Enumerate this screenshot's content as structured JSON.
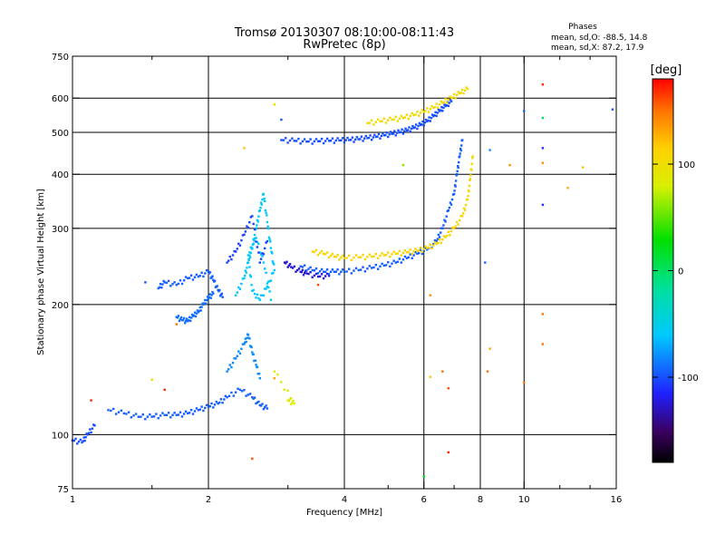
{
  "chart_data": {
    "type": "scatter",
    "title": "Tromsø 20130307 08:10:00-08:11:43",
    "subtitle": "RwPretec (8p)",
    "xlabel": "Frequency [MHz]",
    "ylabel": "Stationary phase Virtual Height [km]",
    "x_scale": "log",
    "y_scale": "log",
    "xlim": [
      1,
      16
    ],
    "ylim": [
      75,
      750
    ],
    "grid": true,
    "x_ticks": [
      1,
      2,
      4,
      6,
      8,
      10,
      16
    ],
    "x_tick_labels": [
      "1",
      "2",
      "4",
      "6",
      "8",
      "10",
      "16"
    ],
    "x_gridlines": [
      2,
      4,
      6,
      8,
      10
    ],
    "y_ticks": [
      75,
      100,
      200,
      300,
      400,
      500,
      600,
      750
    ],
    "y_tick_labels": [
      "75",
      "100",
      "200",
      "300",
      "400",
      "500",
      "600",
      "750"
    ],
    "y_gridlines": [
      100,
      200,
      300,
      400,
      500,
      600
    ],
    "phases_box": {
      "title": "Phases",
      "line1": "mean, sd,O: -88.5, 14.8",
      "line2": "mean, sd,X:  87.2, 17.9"
    },
    "colorbar": {
      "label": "[deg]",
      "range": [
        -180,
        180
      ],
      "ticks": [
        100,
        0,
        -100
      ],
      "tick_labels": [
        "100",
        "0",
        "-100"
      ]
    },
    "traces": [
      {
        "name": "",
        "phase": -100,
        "points": [
          [
            1.0,
            97
          ],
          [
            1.05,
            96
          ],
          [
            1.08,
            100
          ],
          [
            1.12,
            105
          ]
        ]
      },
      {
        "name": "",
        "phase": -95,
        "points": [
          [
            1.2,
            114
          ],
          [
            1.3,
            112
          ],
          [
            1.4,
            110
          ],
          [
            1.5,
            110
          ],
          [
            1.6,
            111
          ],
          [
            1.7,
            111
          ],
          [
            1.8,
            112
          ],
          [
            1.9,
            114
          ],
          [
            2.0,
            116
          ],
          [
            2.1,
            118
          ],
          [
            2.2,
            122
          ],
          [
            2.35,
            127
          ],
          [
            2.5,
            122
          ],
          [
            2.6,
            117
          ],
          [
            2.7,
            115
          ]
        ]
      },
      {
        "name": "",
        "phase": -80,
        "points": [
          [
            2.2,
            140
          ],
          [
            2.3,
            150
          ],
          [
            2.4,
            162
          ],
          [
            2.45,
            170
          ],
          [
            2.5,
            155
          ],
          [
            2.55,
            145
          ],
          [
            2.6,
            135
          ]
        ]
      },
      {
        "name": "",
        "phase": -95,
        "points": [
          [
            1.55,
            218
          ],
          [
            1.6,
            225
          ],
          [
            1.7,
            222
          ],
          [
            1.8,
            230
          ],
          [
            1.9,
            232
          ],
          [
            2.0,
            238
          ],
          [
            2.05,
            228
          ],
          [
            2.1,
            216
          ],
          [
            2.15,
            208
          ]
        ]
      },
      {
        "name": "",
        "phase": -90,
        "points": [
          [
            1.7,
            187
          ],
          [
            1.75,
            184
          ],
          [
            1.8,
            183
          ],
          [
            1.85,
            188
          ],
          [
            1.9,
            192
          ],
          [
            1.95,
            200
          ],
          [
            2.0,
            207
          ],
          [
            2.05,
            212
          ]
        ]
      },
      {
        "name": "",
        "phase": -60,
        "points": [
          [
            2.3,
            210
          ],
          [
            2.4,
            230
          ],
          [
            2.45,
            250
          ],
          [
            2.5,
            270
          ],
          [
            2.55,
            300
          ],
          [
            2.6,
            330
          ],
          [
            2.65,
            360
          ],
          [
            2.7,
            310
          ],
          [
            2.75,
            270
          ],
          [
            2.8,
            240
          ],
          [
            2.7,
            220
          ],
          [
            2.6,
            205
          ],
          [
            2.5,
            215
          ],
          [
            2.45,
            260
          ],
          [
            2.55,
            285
          ],
          [
            2.65,
            250
          ],
          [
            2.75,
            205
          ]
        ]
      },
      {
        "name": "",
        "phase": -105,
        "points": [
          [
            2.2,
            250
          ],
          [
            2.3,
            265
          ],
          [
            2.4,
            290
          ],
          [
            2.5,
            320
          ],
          [
            2.6,
            250
          ],
          [
            2.7,
            280
          ]
        ]
      },
      {
        "name": "",
        "phase": -125,
        "points": [
          [
            2.95,
            250
          ],
          [
            3.05,
            244
          ],
          [
            3.2,
            238
          ],
          [
            3.3,
            236
          ],
          [
            3.5,
            232
          ],
          [
            3.7,
            233
          ]
        ]
      },
      {
        "name": "",
        "phase": -95,
        "points": [
          [
            3.2,
            245
          ],
          [
            3.4,
            240
          ],
          [
            3.6,
            238
          ],
          [
            3.8,
            238
          ],
          [
            4.0,
            238
          ],
          [
            4.3,
            240
          ],
          [
            4.6,
            243
          ],
          [
            4.9,
            246
          ],
          [
            5.2,
            250
          ],
          [
            5.5,
            256
          ],
          [
            5.8,
            262
          ],
          [
            6.1,
            268
          ],
          [
            6.4,
            280
          ],
          [
            6.6,
            300
          ],
          [
            6.8,
            330
          ],
          [
            7.0,
            360
          ],
          [
            7.1,
            400
          ],
          [
            7.2,
            440
          ],
          [
            7.3,
            480
          ]
        ]
      },
      {
        "name": "",
        "phase": 110,
        "points": [
          [
            3.4,
            265
          ],
          [
            3.6,
            262
          ],
          [
            3.8,
            258
          ],
          [
            4.0,
            256
          ],
          [
            4.3,
            257
          ],
          [
            4.6,
            258
          ],
          [
            4.9,
            260
          ],
          [
            5.2,
            262
          ],
          [
            5.5,
            264
          ],
          [
            5.8,
            266
          ],
          [
            6.1,
            270
          ],
          [
            6.4,
            276
          ],
          [
            6.7,
            286
          ],
          [
            7.0,
            300
          ],
          [
            7.3,
            320
          ],
          [
            7.5,
            350
          ],
          [
            7.6,
            390
          ],
          [
            7.7,
            440
          ]
        ]
      },
      {
        "name": "",
        "phase": -100,
        "points": [
          [
            2.9,
            480
          ],
          [
            3.1,
            478
          ],
          [
            3.3,
            476
          ],
          [
            3.5,
            477
          ],
          [
            3.7,
            478
          ],
          [
            3.9,
            479
          ],
          [
            4.1,
            480
          ],
          [
            4.3,
            482
          ],
          [
            4.5,
            485
          ],
          [
            4.7,
            488
          ],
          [
            4.9,
            492
          ],
          [
            5.1,
            496
          ],
          [
            5.3,
            500
          ],
          [
            5.5,
            505
          ],
          [
            5.7,
            512
          ],
          [
            5.9,
            520
          ],
          [
            6.1,
            530
          ],
          [
            6.3,
            545
          ],
          [
            6.5,
            560
          ],
          [
            6.7,
            575
          ],
          [
            6.9,
            590
          ]
        ]
      },
      {
        "name": "",
        "phase": 105,
        "points": [
          [
            4.5,
            525
          ],
          [
            4.8,
            530
          ],
          [
            5.1,
            535
          ],
          [
            5.4,
            540
          ],
          [
            5.7,
            548
          ],
          [
            6.0,
            558
          ],
          [
            6.3,
            570
          ],
          [
            6.6,
            585
          ],
          [
            6.9,
            600
          ],
          [
            7.2,
            615
          ],
          [
            7.5,
            630
          ]
        ]
      },
      {
        "name": "",
        "phase": 85,
        "points": [
          [
            3.0,
            120
          ],
          [
            3.1,
            118
          ],
          [
            2.8,
            140
          ]
        ]
      }
    ],
    "scatter_points": [
      {
        "x": 11.0,
        "y": 645,
        "phase": 170
      },
      {
        "x": 11.0,
        "y": 540,
        "phase": 5
      },
      {
        "x": 11.0,
        "y": 460,
        "phase": -110
      },
      {
        "x": 11.0,
        "y": 425,
        "phase": 140
      },
      {
        "x": 11.0,
        "y": 340,
        "phase": -110
      },
      {
        "x": 11.0,
        "y": 190,
        "phase": 150
      },
      {
        "x": 11.0,
        "y": 162,
        "phase": 150
      },
      {
        "x": 12.5,
        "y": 372,
        "phase": 130
      },
      {
        "x": 15.7,
        "y": 565,
        "phase": -95
      },
      {
        "x": 10.0,
        "y": 560,
        "phase": -95
      },
      {
        "x": 8.4,
        "y": 455,
        "phase": -80
      },
      {
        "x": 8.2,
        "y": 250,
        "phase": -90
      },
      {
        "x": 8.3,
        "y": 140,
        "phase": 150
      },
      {
        "x": 8.4,
        "y": 158,
        "phase": 130
      },
      {
        "x": 10.0,
        "y": 132,
        "phase": 150
      },
      {
        "x": 6.8,
        "y": 91,
        "phase": 170
      },
      {
        "x": 6.0,
        "y": 80,
        "phase": 20
      },
      {
        "x": 6.2,
        "y": 136,
        "phase": 120
      },
      {
        "x": 6.6,
        "y": 140,
        "phase": 150
      },
      {
        "x": 6.8,
        "y": 128,
        "phase": 160
      },
      {
        "x": 1.1,
        "y": 120,
        "phase": 170
      },
      {
        "x": 1.7,
        "y": 180,
        "phase": 150
      },
      {
        "x": 2.5,
        "y": 88,
        "phase": 160
      },
      {
        "x": 1.5,
        "y": 134,
        "phase": 110
      },
      {
        "x": 1.6,
        "y": 127,
        "phase": 170
      },
      {
        "x": 1.45,
        "y": 225,
        "phase": -100
      },
      {
        "x": 2.8,
        "y": 580,
        "phase": 100
      },
      {
        "x": 2.4,
        "y": 460,
        "phase": 120
      },
      {
        "x": 2.9,
        "y": 535,
        "phase": -100
      },
      {
        "x": 5.4,
        "y": 420,
        "phase": 60
      },
      {
        "x": 6.2,
        "y": 210,
        "phase": 140
      },
      {
        "x": 9.3,
        "y": 420,
        "phase": 140
      },
      {
        "x": 3.5,
        "y": 222,
        "phase": 160
      },
      {
        "x": 2.8,
        "y": 135,
        "phase": 130
      },
      {
        "x": 13.5,
        "y": 415,
        "phase": 120
      }
    ]
  }
}
